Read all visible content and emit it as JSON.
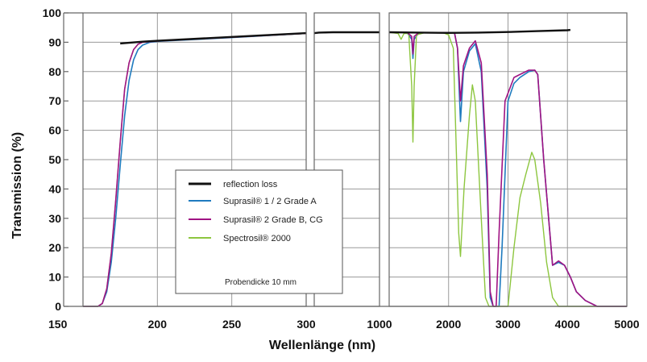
{
  "chart_data": {
    "type": "line",
    "xlabel": "Wellenlänge (nm)",
    "ylabel": "Transmission (%)",
    "ylim": [
      0,
      100
    ],
    "y_ticks": [
      "0",
      "10",
      "20",
      "30",
      "40",
      "50",
      "60",
      "70",
      "80",
      "90",
      "100"
    ],
    "grid": true,
    "legend_position": "bottom-center",
    "panels": [
      {
        "xlim": [
          150,
          300
        ],
        "x_ticks": [
          "150",
          "200",
          "250",
          "300"
        ]
      },
      {
        "xlim": [
          300,
          1000
        ],
        "x_ticks": [
          "1000"
        ]
      },
      {
        "xlim": [
          1000,
          5000
        ],
        "x_ticks": [
          "2000",
          "3000",
          "4000",
          "5000"
        ]
      }
    ],
    "series": [
      {
        "name": "reflection loss",
        "color": "#111111",
        "key": "reflection",
        "points": [
          [
            175,
            89.6
          ],
          [
            190,
            90.2
          ],
          [
            200,
            90.5
          ],
          [
            250,
            91.8
          ],
          [
            300,
            93.1
          ],
          [
            350,
            93.3
          ],
          [
            500,
            93.4
          ],
          [
            1000,
            93.4
          ],
          [
            1500,
            93.3
          ],
          [
            2000,
            93.2
          ],
          [
            2500,
            93.3
          ],
          [
            3000,
            93.5
          ],
          [
            3500,
            93.8
          ],
          [
            4000,
            94.1
          ],
          [
            4050,
            94.2
          ]
        ]
      },
      {
        "name": "Suprasil® 1 / 2 Grade A",
        "color": "#1f7bbf",
        "key": "suprasil12",
        "points": [
          [
            150,
            0
          ],
          [
            160,
            0
          ],
          [
            163,
            1
          ],
          [
            166,
            5
          ],
          [
            169,
            15
          ],
          [
            172,
            30
          ],
          [
            175,
            48
          ],
          [
            178,
            65
          ],
          [
            181,
            77
          ],
          [
            184,
            84
          ],
          [
            187,
            87.5
          ],
          [
            190,
            89
          ],
          [
            195,
            90
          ],
          [
            200,
            90.3
          ],
          [
            250,
            91.6
          ],
          [
            300,
            93
          ],
          [
            320,
            93.2
          ],
          [
            500,
            93.4
          ],
          [
            1000,
            93.4
          ],
          [
            1300,
            93.4
          ],
          [
            1380,
            91
          ],
          [
            1400,
            84.5
          ],
          [
            1420,
            91
          ],
          [
            1500,
            93.3
          ],
          [
            2000,
            93.3
          ],
          [
            2100,
            93.2
          ],
          [
            2150,
            88
          ],
          [
            2200,
            63
          ],
          [
            2250,
            80
          ],
          [
            2350,
            87
          ],
          [
            2450,
            89.5
          ],
          [
            2550,
            80
          ],
          [
            2650,
            40
          ],
          [
            2700,
            3
          ],
          [
            2750,
            0
          ],
          [
            2850,
            0
          ],
          [
            2900,
            20
          ],
          [
            3000,
            70
          ],
          [
            3100,
            76
          ],
          [
            3200,
            78
          ],
          [
            3350,
            80
          ],
          [
            3450,
            80.5
          ],
          [
            3500,
            79
          ],
          [
            3600,
            50
          ],
          [
            3750,
            14
          ],
          [
            3850,
            15
          ],
          [
            3950,
            14
          ],
          [
            4050,
            10
          ],
          [
            4150,
            5
          ],
          [
            4300,
            2
          ],
          [
            4500,
            0
          ],
          [
            5000,
            0
          ]
        ]
      },
      {
        "name": "Suprasil® 2 Grade B, CG",
        "color": "#a01383",
        "key": "suprasil2",
        "points": [
          [
            150,
            0
          ],
          [
            160,
            0
          ],
          [
            163,
            1
          ],
          [
            166,
            6
          ],
          [
            169,
            18
          ],
          [
            172,
            36
          ],
          [
            175,
            56
          ],
          [
            178,
            74
          ],
          [
            181,
            83
          ],
          [
            184,
            87.5
          ],
          [
            187,
            89.3
          ],
          [
            190,
            90
          ],
          [
            195,
            90.2
          ],
          [
            200,
            90.4
          ],
          [
            250,
            91.7
          ],
          [
            300,
            93
          ],
          [
            320,
            93.2
          ],
          [
            500,
            93.4
          ],
          [
            1000,
            93.4
          ],
          [
            1300,
            93.4
          ],
          [
            1380,
            92
          ],
          [
            1400,
            86
          ],
          [
            1420,
            92
          ],
          [
            1500,
            93.3
          ],
          [
            2000,
            93.3
          ],
          [
            2100,
            93.2
          ],
          [
            2150,
            88
          ],
          [
            2200,
            70
          ],
          [
            2250,
            82
          ],
          [
            2350,
            88
          ],
          [
            2450,
            90.5
          ],
          [
            2550,
            83
          ],
          [
            2650,
            45
          ],
          [
            2700,
            5
          ],
          [
            2750,
            0
          ],
          [
            2800,
            0
          ],
          [
            2850,
            25
          ],
          [
            2950,
            70
          ],
          [
            3100,
            78
          ],
          [
            3200,
            79
          ],
          [
            3350,
            80.5
          ],
          [
            3450,
            80.5
          ],
          [
            3500,
            79
          ],
          [
            3600,
            50
          ],
          [
            3750,
            14
          ],
          [
            3850,
            15.5
          ],
          [
            3950,
            14
          ],
          [
            4050,
            10
          ],
          [
            4150,
            5
          ],
          [
            4300,
            2
          ],
          [
            4500,
            0
          ],
          [
            5000,
            0
          ]
        ]
      },
      {
        "name": "Spectrosil® 2000",
        "color": "#8dc63f",
        "key": "spectrosil",
        "points": [
          [
            150,
            0
          ],
          [
            160,
            0
          ],
          [
            163,
            1
          ],
          [
            166,
            6
          ],
          [
            169,
            18
          ],
          [
            172,
            36
          ],
          [
            175,
            56
          ],
          [
            178,
            74
          ],
          [
            181,
            83
          ],
          [
            184,
            87.5
          ],
          [
            187,
            89.3
          ],
          [
            190,
            90
          ],
          [
            195,
            90.2
          ],
          [
            200,
            90.4
          ],
          [
            250,
            91.7
          ],
          [
            300,
            93
          ],
          [
            320,
            93.2
          ],
          [
            500,
            93.4
          ],
          [
            1000,
            93.4
          ],
          [
            1150,
            93
          ],
          [
            1200,
            91
          ],
          [
            1250,
            93
          ],
          [
            1330,
            93
          ],
          [
            1380,
            75
          ],
          [
            1400,
            56
          ],
          [
            1420,
            75
          ],
          [
            1460,
            92.5
          ],
          [
            1600,
            93.3
          ],
          [
            1900,
            93.3
          ],
          [
            2000,
            92.5
          ],
          [
            2080,
            88
          ],
          [
            2120,
            60
          ],
          [
            2170,
            25
          ],
          [
            2200,
            17
          ],
          [
            2260,
            40
          ],
          [
            2350,
            65
          ],
          [
            2400,
            75.5
          ],
          [
            2450,
            70
          ],
          [
            2550,
            30
          ],
          [
            2620,
            3
          ],
          [
            2680,
            0
          ],
          [
            3000,
            0
          ],
          [
            3100,
            20
          ],
          [
            3200,
            37
          ],
          [
            3300,
            45
          ],
          [
            3400,
            52.5
          ],
          [
            3450,
            50
          ],
          [
            3550,
            35
          ],
          [
            3650,
            15
          ],
          [
            3750,
            3
          ],
          [
            3850,
            0
          ],
          [
            5000,
            0
          ]
        ]
      }
    ],
    "legend_entries": [
      "reflection loss",
      "Suprasil® 1 / 2 Grade A",
      "Suprasil® 2 Grade B, CG",
      "Spectrosil® 2000"
    ],
    "legend_keys": [
      "reflection",
      "suprasil12",
      "suprasil2",
      "spectrosil"
    ],
    "legend_colors": [
      "#111111",
      "#1f7bbf",
      "#a01383",
      "#8dc63f"
    ],
    "annotation": "Probendicke 10 mm"
  }
}
